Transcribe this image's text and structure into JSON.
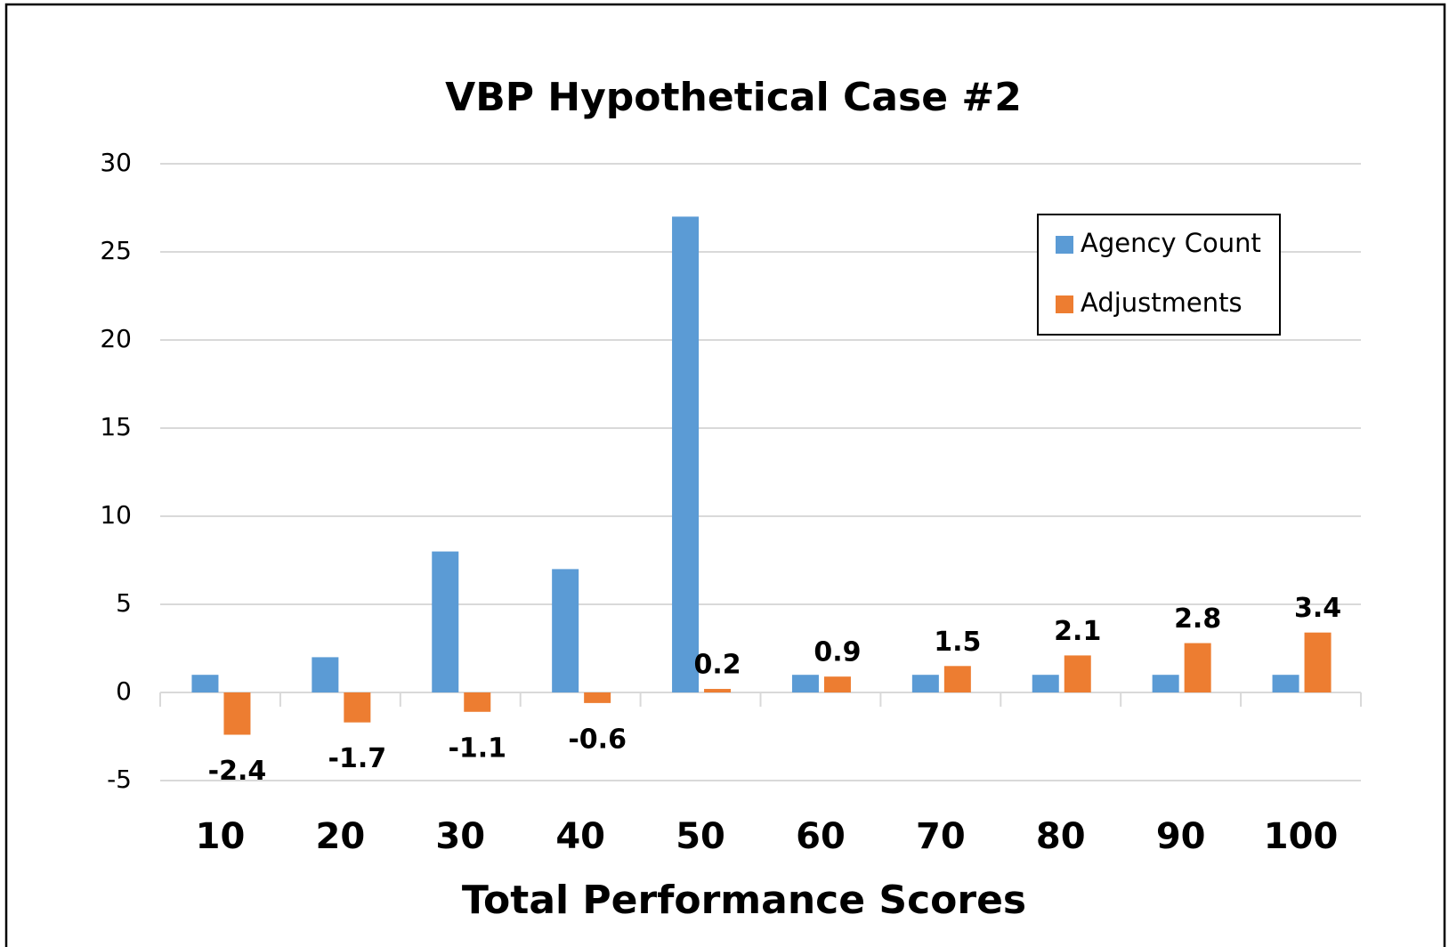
{
  "chart_data": {
    "type": "bar",
    "title": "VBP Hypothetical Case #2",
    "x_label": "Total Performance Scores",
    "categories": [
      "10",
      "20",
      "30",
      "40",
      "50",
      "60",
      "70",
      "80",
      "90",
      "100"
    ],
    "series": [
      {
        "name": "Agency Count",
        "color": "#5b9bd5",
        "values": [
          1,
          2,
          8,
          7,
          27,
          1,
          1,
          1,
          1,
          1
        ]
      },
      {
        "name": "Adjustments",
        "color": "#ed7d31",
        "values": [
          -2.4,
          -1.7,
          -1.1,
          -0.6,
          0.2,
          0.9,
          1.5,
          2.1,
          2.8,
          3.4
        ],
        "data_labels": true
      }
    ],
    "ylim": [
      -5,
      30
    ],
    "yticks": [
      -5,
      0,
      5,
      10,
      15,
      20,
      25,
      30
    ],
    "grid": true,
    "legend": "upper right"
  }
}
